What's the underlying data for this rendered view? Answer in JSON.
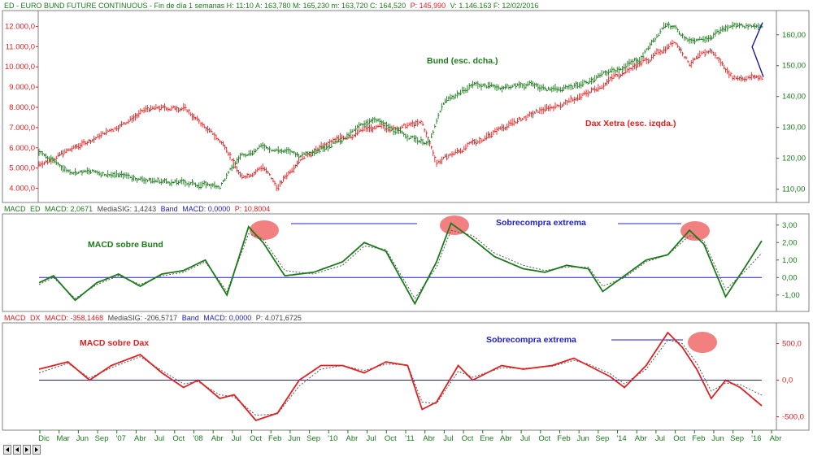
{
  "header": {
    "panel1": [
      "ED",
      "- EURO BUND FUTURE CONTINUOUS - Fin de día 1 semanas  H: 11:10  A: 163,780  M: 165,230  m: 163,720  C: 164,520",
      "P: 145,990",
      "V: 1.146.163  F: 12/02/2016"
    ],
    "panel2": [
      "MACD",
      "ED",
      "MACD: 2,0671",
      "MediaSIG: 1,4243",
      "Band",
      "MACD: 0,0000",
      "P: 10,8004"
    ],
    "panel3": [
      "MACD",
      "DX",
      "MACD: -358,1468",
      "MediaSIG: -206,5717",
      "Band",
      "MACD: 0,0000",
      "P: 4.071,6725"
    ]
  },
  "annotations": {
    "bund_label": "Bund (esc. dcha.)",
    "dax_label": "Dax Xetra (esc. izqda.)",
    "macd_bund_label": "MACD sobre Bund",
    "macd_dax_label": "MACD sobre Dax",
    "overbought_1": "Sobrecompra extrema",
    "overbought_2": "Sobrecompra extrema"
  },
  "colors": {
    "bund": "#1a7a1a",
    "dax": "#e02020",
    "signal": "#555555",
    "zero_line": "#2020c8",
    "highlight": "#ee5555",
    "trend_line": "#1a1aa0"
  },
  "chart_data": [
    {
      "type": "line",
      "x_ticks": [
        "Dic",
        "Mar",
        "Jun",
        "Sep",
        "'07",
        "Abr",
        "Jul",
        "Oct",
        "'08",
        "Abr",
        "Jul",
        "Oct",
        "Feb",
        "Jun",
        "Sep",
        "'10",
        "Abr",
        "Jul",
        "Oct",
        "'11",
        "Abr",
        "Jul",
        "Oct",
        "Ene",
        "Abr",
        "Jul",
        "Oct",
        "Feb",
        "Jun",
        "Sep",
        "'14",
        "Abr",
        "Jul",
        "Oct",
        "Feb",
        "Jun",
        "Sep",
        "'16",
        "Abr"
      ],
      "left_axis": {
        "ticks": [
          "4.000,0",
          "5.000,0",
          "6.000,0",
          "7.000,0",
          "8.000,0",
          "9.000,0",
          "10.000,0",
          "11.000,0",
          "12.000,0"
        ],
        "ylim": [
          3500,
          12500
        ]
      },
      "right_axis": {
        "ticks": [
          "110,00",
          "120,00",
          "130,00",
          "140,00",
          "150,00",
          "160,00"
        ],
        "ylim": [
          107,
          166
        ]
      },
      "series": [
        {
          "axis": "right",
          "points": [
            [
              0,
              122
            ],
            [
              0.04,
              116
            ],
            [
              0.1,
              115
            ],
            [
              0.15,
              113
            ],
            [
              0.2,
              112
            ],
            [
              0.25,
              111
            ],
            [
              0.28,
              121
            ],
            [
              0.31,
              124
            ],
            [
              0.36,
              121
            ],
            [
              0.42,
              126
            ],
            [
              0.46,
              133
            ],
            [
              0.5,
              128
            ],
            [
              0.54,
              125
            ],
            [
              0.56,
              138
            ],
            [
              0.6,
              144
            ],
            [
              0.64,
              143
            ],
            [
              0.68,
              144
            ],
            [
              0.72,
              142
            ],
            [
              0.76,
              145
            ],
            [
              0.8,
              149
            ],
            [
              0.83,
              152
            ],
            [
              0.87,
              164
            ],
            [
              0.9,
              158
            ],
            [
              0.93,
              160
            ],
            [
              0.96,
              163
            ]
          ]
        },
        {
          "axis": "left",
          "points": [
            [
              0,
              5200
            ],
            [
              0.05,
              6000
            ],
            [
              0.1,
              6900
            ],
            [
              0.15,
              7900
            ],
            [
              0.2,
              8000
            ],
            [
              0.23,
              7000
            ],
            [
              0.26,
              6000
            ],
            [
              0.28,
              4500
            ],
            [
              0.31,
              5100
            ],
            [
              0.33,
              4000
            ],
            [
              0.36,
              5500
            ],
            [
              0.4,
              6200
            ],
            [
              0.45,
              6900
            ],
            [
              0.49,
              7000
            ],
            [
              0.53,
              7200
            ],
            [
              0.55,
              5300
            ],
            [
              0.6,
              6200
            ],
            [
              0.64,
              7000
            ],
            [
              0.7,
              7900
            ],
            [
              0.75,
              8500
            ],
            [
              0.8,
              9600
            ],
            [
              0.85,
              10500
            ],
            [
              0.88,
              11300
            ],
            [
              0.9,
              10200
            ],
            [
              0.93,
              10800
            ],
            [
              0.96,
              9500
            ]
          ]
        }
      ]
    },
    {
      "type": "line",
      "y_ticks": [
        "3,00",
        "2,00",
        "1,00",
        "0,00",
        "-1,00"
      ],
      "ylim": [
        -1.8,
        3.5
      ],
      "series": [
        {
          "points": [
            [
              0,
              -0.3
            ],
            [
              0.02,
              0.1
            ],
            [
              0.05,
              -1.3
            ],
            [
              0.08,
              -0.3
            ],
            [
              0.11,
              0.2
            ],
            [
              0.14,
              -0.5
            ],
            [
              0.17,
              0.2
            ],
            [
              0.2,
              0.4
            ],
            [
              0.23,
              1.0
            ],
            [
              0.26,
              -1.0
            ],
            [
              0.29,
              2.9
            ],
            [
              0.31,
              2.0
            ],
            [
              0.34,
              0.1
            ],
            [
              0.38,
              0.3
            ],
            [
              0.42,
              0.9
            ],
            [
              0.45,
              2.0
            ],
            [
              0.48,
              1.5
            ],
            [
              0.52,
              -1.5
            ],
            [
              0.55,
              0.9
            ],
            [
              0.57,
              3.1
            ],
            [
              0.6,
              2.2
            ],
            [
              0.63,
              1.2
            ],
            [
              0.67,
              0.5
            ],
            [
              0.7,
              0.3
            ],
            [
              0.73,
              0.7
            ],
            [
              0.76,
              0.5
            ],
            [
              0.78,
              -0.8
            ],
            [
              0.81,
              0.1
            ],
            [
              0.84,
              1.0
            ],
            [
              0.87,
              1.3
            ],
            [
              0.9,
              2.7
            ],
            [
              0.92,
              1.9
            ],
            [
              0.95,
              -1.1
            ],
            [
              0.98,
              0.8
            ],
            [
              1.0,
              2.1
            ]
          ]
        }
      ],
      "signal_series": [
        {
          "points": [
            [
              0,
              -0.4
            ],
            [
              0.02,
              0.0
            ],
            [
              0.05,
              -1.2
            ],
            [
              0.08,
              -0.4
            ],
            [
              0.11,
              0.1
            ],
            [
              0.14,
              -0.4
            ],
            [
              0.17,
              0.1
            ],
            [
              0.2,
              0.3
            ],
            [
              0.23,
              0.9
            ],
            [
              0.26,
              -0.8
            ],
            [
              0.29,
              2.5
            ],
            [
              0.31,
              2.2
            ],
            [
              0.34,
              0.4
            ],
            [
              0.38,
              0.2
            ],
            [
              0.42,
              0.7
            ],
            [
              0.45,
              1.8
            ],
            [
              0.48,
              1.6
            ],
            [
              0.52,
              -1.2
            ],
            [
              0.55,
              0.6
            ],
            [
              0.57,
              2.7
            ],
            [
              0.6,
              2.4
            ],
            [
              0.63,
              1.4
            ],
            [
              0.67,
              0.7
            ],
            [
              0.7,
              0.4
            ],
            [
              0.73,
              0.6
            ],
            [
              0.76,
              0.6
            ],
            [
              0.78,
              -0.5
            ],
            [
              0.81,
              0.0
            ],
            [
              0.84,
              0.9
            ],
            [
              0.87,
              1.3
            ],
            [
              0.9,
              2.4
            ],
            [
              0.92,
              2.1
            ],
            [
              0.95,
              -0.7
            ],
            [
              0.98,
              0.5
            ],
            [
              1.0,
              1.4
            ]
          ]
        }
      ]
    },
    {
      "type": "line",
      "y_ticks": [
        "500,0",
        "0,0",
        "-500,0"
      ],
      "ylim": [
        -650,
        750
      ],
      "series": [
        {
          "points": [
            [
              0,
              150
            ],
            [
              0.04,
              250
            ],
            [
              0.07,
              0
            ],
            [
              0.1,
              200
            ],
            [
              0.14,
              350
            ],
            [
              0.17,
              100
            ],
            [
              0.2,
              -100
            ],
            [
              0.22,
              0
            ],
            [
              0.25,
              -250
            ],
            [
              0.27,
              -200
            ],
            [
              0.3,
              -550
            ],
            [
              0.33,
              -450
            ],
            [
              0.36,
              0
            ],
            [
              0.39,
              200
            ],
            [
              0.42,
              200
            ],
            [
              0.45,
              100
            ],
            [
              0.48,
              250
            ],
            [
              0.51,
              200
            ],
            [
              0.53,
              -400
            ],
            [
              0.55,
              -300
            ],
            [
              0.58,
              200
            ],
            [
              0.6,
              0
            ],
            [
              0.64,
              200
            ],
            [
              0.67,
              150
            ],
            [
              0.71,
              200
            ],
            [
              0.74,
              300
            ],
            [
              0.76,
              200
            ],
            [
              0.79,
              50
            ],
            [
              0.81,
              -100
            ],
            [
              0.84,
              200
            ],
            [
              0.87,
              650
            ],
            [
              0.89,
              450
            ],
            [
              0.91,
              150
            ],
            [
              0.93,
              -250
            ],
            [
              0.95,
              0
            ],
            [
              0.97,
              -100
            ],
            [
              1.0,
              -350
            ]
          ]
        }
      ],
      "signal_series": [
        {
          "points": [
            [
              0,
              100
            ],
            [
              0.04,
              230
            ],
            [
              0.07,
              30
            ],
            [
              0.1,
              170
            ],
            [
              0.14,
              320
            ],
            [
              0.17,
              130
            ],
            [
              0.2,
              -50
            ],
            [
              0.22,
              -20
            ],
            [
              0.25,
              -200
            ],
            [
              0.27,
              -230
            ],
            [
              0.3,
              -480
            ],
            [
              0.33,
              -460
            ],
            [
              0.36,
              -80
            ],
            [
              0.39,
              150
            ],
            [
              0.42,
              200
            ],
            [
              0.45,
              130
            ],
            [
              0.48,
              220
            ],
            [
              0.51,
              210
            ],
            [
              0.53,
              -300
            ],
            [
              0.55,
              -320
            ],
            [
              0.58,
              120
            ],
            [
              0.6,
              40
            ],
            [
              0.64,
              170
            ],
            [
              0.67,
              160
            ],
            [
              0.71,
              190
            ],
            [
              0.74,
              270
            ],
            [
              0.76,
              220
            ],
            [
              0.79,
              90
            ],
            [
              0.81,
              -50
            ],
            [
              0.84,
              150
            ],
            [
              0.87,
              550
            ],
            [
              0.89,
              500
            ],
            [
              0.91,
              230
            ],
            [
              0.93,
              -150
            ],
            [
              0.95,
              -40
            ],
            [
              0.97,
              -60
            ],
            [
              1.0,
              -206
            ]
          ]
        }
      ]
    }
  ]
}
